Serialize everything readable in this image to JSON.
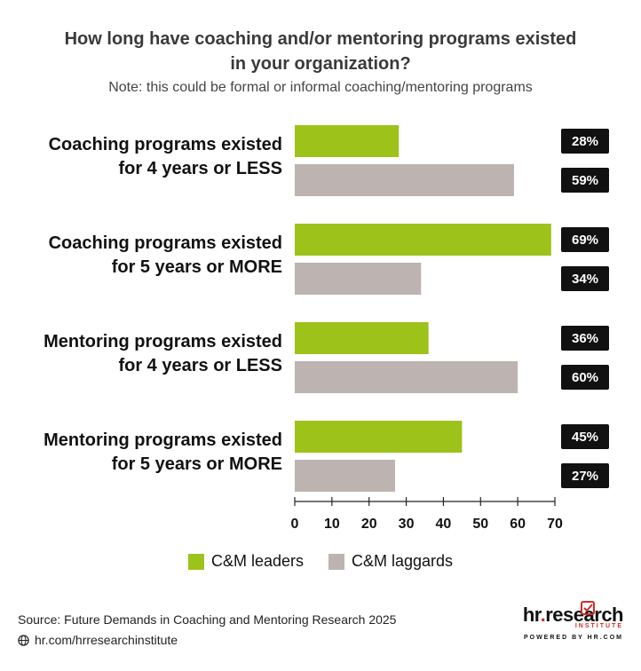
{
  "title_line1": "How long have coaching and/or mentoring programs existed",
  "title_line2": "in your organization?",
  "subtitle": "Note: this could be formal or informal coaching/mentoring programs",
  "source": "Source:  Future Demands in Coaching and Mentoring Research 2025",
  "link": "hr.com/hrresearchinstitute",
  "logo": {
    "main_prefix": "hr",
    "main_dot": ".",
    "main_suffix": "research",
    "sub": "INSTITUTE",
    "powered": "POWERED BY HR.COM"
  },
  "colors": {
    "leaders": "#9dc21a",
    "laggards": "#bdb3b0",
    "badge": "#111111"
  },
  "chart_data": {
    "type": "bar",
    "orientation": "horizontal",
    "title": "How long have coaching and/or mentoring programs existed in your organization?",
    "subtitle": "Note: this could be formal or informal coaching/mentoring programs",
    "categories": [
      [
        "Coaching programs existed",
        "for 4 years or LESS"
      ],
      [
        "Coaching programs existed",
        "for 5 years or MORE"
      ],
      [
        "Mentoring programs existed",
        "for 4 years or LESS"
      ],
      [
        "Mentoring programs existed",
        "for 5 years or MORE"
      ]
    ],
    "series": [
      {
        "name": "C&M leaders",
        "values": [
          28,
          69,
          36,
          45
        ],
        "labels": [
          "28%",
          "69%",
          "36%",
          "45%"
        ]
      },
      {
        "name": "C&M laggards",
        "values": [
          59,
          34,
          60,
          27
        ],
        "labels": [
          "59%",
          "34%",
          "60%",
          "27%"
        ]
      }
    ],
    "xlim": [
      0,
      70
    ],
    "xticks": [
      "0",
      "10",
      "20",
      "30",
      "40",
      "50",
      "60",
      "70"
    ],
    "grid": false,
    "legend_position": "bottom"
  }
}
